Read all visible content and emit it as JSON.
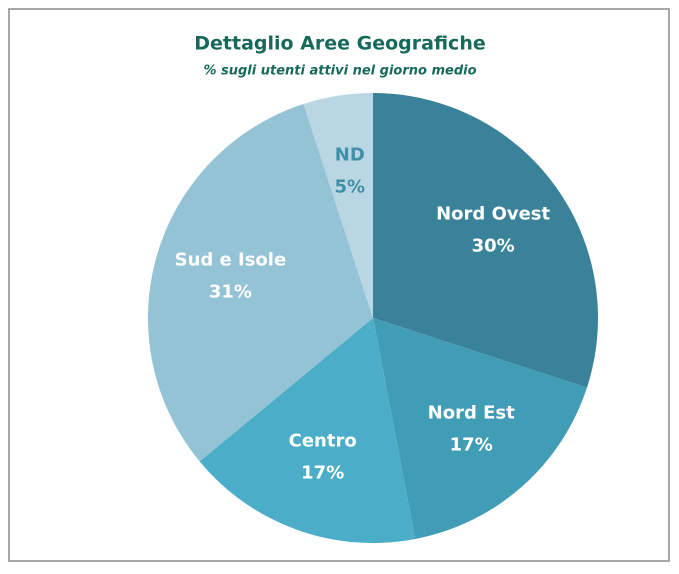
{
  "chart_data": {
    "type": "pie",
    "title": "Dettaglio Aree Geografiche",
    "subtitle": "% sugli utenti attivi nel giorno medio",
    "categories": [
      "Nord Ovest",
      "Nord Est",
      "Centro",
      "Sud e Isole",
      "ND"
    ],
    "values": [
      30,
      17,
      17,
      31,
      5
    ],
    "value_labels": [
      "30%",
      "17%",
      "17%",
      "31%",
      "5%"
    ],
    "colors": [
      "#39829a",
      "#419db6",
      "#4badc7",
      "#94c3d5",
      "#b8d7e2"
    ]
  }
}
